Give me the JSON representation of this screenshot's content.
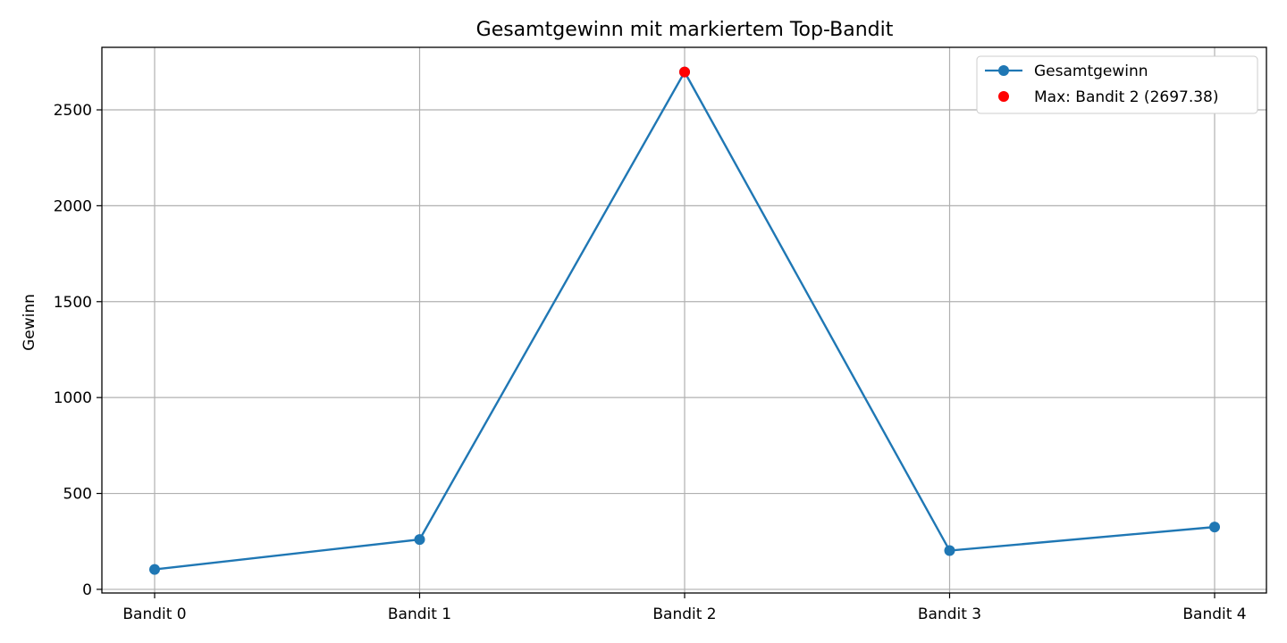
{
  "chart_data": {
    "type": "line",
    "title": "Gesamtgewinn mit markiertem Top-Bandit",
    "xlabel": "",
    "ylabel": "Gewinn",
    "categories": [
      "Bandit 0",
      "Bandit 1",
      "Bandit 2",
      "Bandit 3",
      "Bandit 4"
    ],
    "series": [
      {
        "name": "Gesamtgewinn",
        "values": [
          104,
          260,
          2697.38,
          202,
          325
        ],
        "color": "#1f77b4",
        "marker": "circle"
      }
    ],
    "highlight": {
      "name": "Max: Bandit 2 (2697.38)",
      "category": "Bandit 2",
      "value": 2697.38,
      "color": "#ff0000"
    },
    "yticks": [
      0,
      500,
      1000,
      1500,
      2000,
      2500
    ],
    "ylim": [
      -19,
      2826
    ],
    "grid": true,
    "legend_position": "top-right"
  }
}
